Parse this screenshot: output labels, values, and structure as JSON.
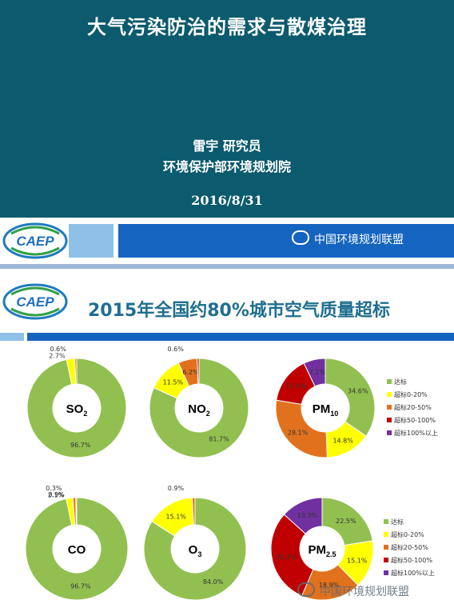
{
  "slide1": {
    "title": "大气污染防治的需求与散煤治理",
    "author": "雷宇   研究员",
    "org": "环境保护部环境规划院",
    "date": "2016/8/31"
  },
  "logo": {
    "text": "CAEP"
  },
  "watermark": {
    "text": "中国环境规划联盟",
    "icon": "wechat-icon"
  },
  "slide3": {
    "title": "2015年全国约80%城市空气质量超标"
  },
  "colors": {
    "达标": "#92c050",
    "超标0-20%": "#ffff00",
    "超标20-50%": "#e2711d",
    "超标50-100%": "#c00000",
    "超标100%以上": "#7030a0"
  },
  "chart_data": [
    {
      "type": "pie",
      "subtype": "donut",
      "center_label": "SO2",
      "center_main": "SO",
      "center_sub": "2",
      "slices": [
        {
          "name": "达标",
          "value": 96.7,
          "label": "96.7%"
        },
        {
          "name": "超标0-20%",
          "value": 2.7,
          "label": "2.7%"
        },
        {
          "name": "超标20-50%",
          "value": 0.6,
          "label": "0.6%"
        }
      ]
    },
    {
      "type": "pie",
      "subtype": "donut",
      "center_label": "NO2",
      "center_main": "NO",
      "center_sub": "2",
      "slices": [
        {
          "name": "达标",
          "value": 81.7,
          "label": "81.7%"
        },
        {
          "name": "超标0-20%",
          "value": 11.5,
          "label": "11.5%"
        },
        {
          "name": "超标20-50%",
          "value": 6.2,
          "label": "6.2%"
        },
        {
          "name": "超标50-100%",
          "value": 0.6,
          "label": "0.6%"
        }
      ]
    },
    {
      "type": "pie",
      "subtype": "donut",
      "center_label": "PM10",
      "center_main": "PM",
      "center_sub": "10",
      "slices": [
        {
          "name": "达标",
          "value": 34.6,
          "label": "34.6%"
        },
        {
          "name": "超标0-20%",
          "value": 14.8,
          "label": "14.8%"
        },
        {
          "name": "超标20-50%",
          "value": 28.1,
          "label": "28.1%"
        },
        {
          "name": "超标50-100%",
          "value": 15.4,
          "label": "15.4%"
        },
        {
          "name": "超标100%以上",
          "value": 7.1,
          "label": "7.1%"
        }
      ],
      "legend": [
        "达标",
        "超标0-20%",
        "超标20-50%",
        "超标50-100%",
        "超标100%以上"
      ]
    },
    {
      "type": "pie",
      "subtype": "donut",
      "center_label": "CO",
      "center_main": "CO",
      "center_sub": "",
      "slices": [
        {
          "name": "达标",
          "value": 96.7,
          "label": "96.7%"
        },
        {
          "name": "超标0-20%",
          "value": 2.1,
          "label": "2.1%"
        },
        {
          "name": "超标20-50%",
          "value": 0.9,
          "label": "0.9%"
        },
        {
          "name": "超标50-100%",
          "value": 0.3,
          "label": "0.3%"
        }
      ]
    },
    {
      "type": "pie",
      "subtype": "donut",
      "center_label": "O3",
      "center_main": "O",
      "center_sub": "3",
      "slices": [
        {
          "name": "达标",
          "value": 84.0,
          "label": "84.0%"
        },
        {
          "name": "超标0-20%",
          "value": 15.1,
          "label": "15.1%"
        },
        {
          "name": "超标20-50%",
          "value": 0.9,
          "label": "0.9%"
        }
      ]
    },
    {
      "type": "pie",
      "subtype": "donut",
      "center_label": "PM2.5",
      "center_main": "PM",
      "center_sub": "2.5",
      "slices": [
        {
          "name": "达标",
          "value": 22.5,
          "label": "22.5%"
        },
        {
          "name": "超标0-20%",
          "value": 15.1,
          "label": "15.1%"
        },
        {
          "name": "超标20-50%",
          "value": 18.9,
          "label": "18.9%"
        },
        {
          "name": "超标50-100%",
          "value": 30.2,
          "label": "30.2%"
        },
        {
          "name": "超标100%以上",
          "value": 13.3,
          "label": "13.3%"
        }
      ],
      "legend": [
        "达标",
        "超标0-20%",
        "超标20-50%",
        "超标50-100%",
        "超标100%以上"
      ]
    }
  ]
}
